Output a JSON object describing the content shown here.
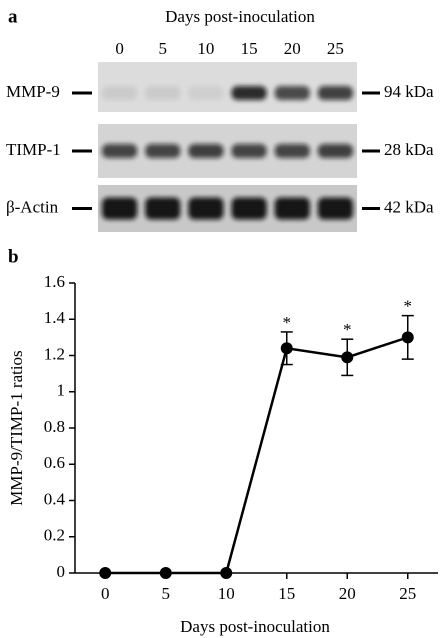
{
  "panel_a": {
    "label": "a",
    "title": "Days post-inoculation",
    "lanes": [
      "0",
      "5",
      "10",
      "15",
      "20",
      "25"
    ],
    "rows": [
      {
        "name": "MMP-9",
        "size": "94 kDa"
      },
      {
        "name": "TIMP-1",
        "size": "28 kDa"
      },
      {
        "name": "β-Actin",
        "size": "42 kDa"
      }
    ]
  },
  "panel_b": {
    "label": "b"
  },
  "chart_data": {
    "type": "line",
    "xlabel": "Days post-inoculation",
    "ylabel": "MMP-9/TIMP-1 ratios",
    "x": [
      0,
      5,
      10,
      15,
      20,
      25
    ],
    "series": [
      {
        "color": "#000000",
        "values": [
          0,
          0,
          0,
          1.24,
          1.19,
          1.3
        ],
        "errors": [
          null,
          null,
          null,
          0.09,
          0.1,
          0.12
        ]
      }
    ],
    "annotations": [
      {
        "x": 15,
        "text": "*"
      },
      {
        "x": 20,
        "text": "*"
      },
      {
        "x": 25,
        "text": "*"
      }
    ],
    "xlim": [
      -2.5,
      27.5
    ],
    "xticks": [
      0,
      5,
      10,
      15,
      20,
      25
    ],
    "ylim": [
      0,
      1.6
    ],
    "yticks": [
      0,
      0.2,
      0.4,
      0.6,
      0.8,
      1,
      1.2,
      1.4,
      1.6
    ]
  }
}
